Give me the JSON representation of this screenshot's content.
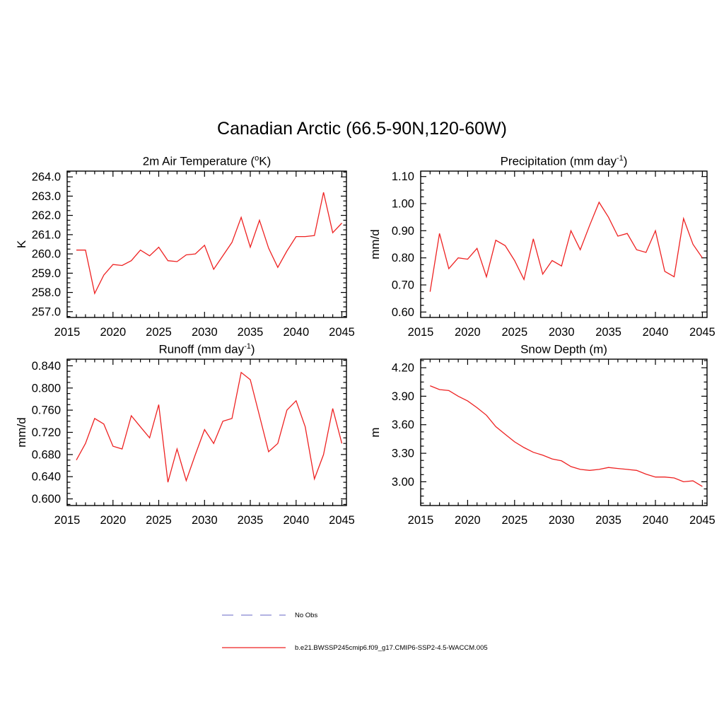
{
  "title": "Canadian Arctic (66.5-90N,120-60W)",
  "legend": {
    "entries": [
      {
        "label": "No Obs",
        "color": "#9a9ad8",
        "style": "dashed"
      },
      {
        "label": "b.e21.BWSSP245cmip6.f09_g17.CMIP6-SSP2-4.5-WACCM.005",
        "color": "#ee2222",
        "style": "solid"
      }
    ]
  },
  "chart_data": [
    {
      "type": "line",
      "title": {
        "pre": "2m Air Temperature (",
        "sup": "o",
        "post": "K)"
      },
      "ylabel": "K",
      "color": "#ee2222",
      "x": [
        2016,
        2017,
        2018,
        2019,
        2020,
        2021,
        2022,
        2023,
        2024,
        2025,
        2026,
        2027,
        2028,
        2029,
        2030,
        2031,
        2032,
        2033,
        2034,
        2035,
        2036,
        2037,
        2038,
        2039,
        2040,
        2041,
        2042,
        2043,
        2044,
        2045
      ],
      "values": [
        260.2,
        260.2,
        257.95,
        258.9,
        259.45,
        259.4,
        259.65,
        260.2,
        259.9,
        260.35,
        259.65,
        259.6,
        259.95,
        260.0,
        260.45,
        259.2,
        259.9,
        260.6,
        261.9,
        260.35,
        261.75,
        260.3,
        259.3,
        260.15,
        260.9,
        260.9,
        260.95,
        263.2,
        261.1,
        261.6
      ],
      "xlim": [
        2015,
        2045.5
      ],
      "ylim": [
        256.7,
        264.3
      ],
      "xticks": [
        2015,
        2020,
        2025,
        2030,
        2035,
        2040,
        2045
      ],
      "xtick_labels": [
        "2015",
        "2020",
        "2025",
        "2030",
        "2035",
        "2040",
        "2045"
      ],
      "yticks": [
        257,
        258,
        259,
        260,
        261,
        262,
        263,
        264
      ],
      "ytick_labels": [
        "257.0",
        "258.0",
        "259.0",
        "260.0",
        "261.0",
        "262.0",
        "263.0",
        "264.0"
      ],
      "x_minor": 1,
      "y_minor": 0.25
    },
    {
      "type": "line",
      "title": {
        "pre": "Precipitation (mm day",
        "sup": "-1",
        "post": ")"
      },
      "ylabel": "mm/d",
      "color": "#ee2222",
      "x": [
        2016,
        2017,
        2018,
        2019,
        2020,
        2021,
        2022,
        2023,
        2024,
        2025,
        2026,
        2027,
        2028,
        2029,
        2030,
        2031,
        2032,
        2033,
        2034,
        2035,
        2036,
        2037,
        2038,
        2039,
        2040,
        2041,
        2042,
        2043,
        2044,
        2045
      ],
      "values": [
        0.675,
        0.89,
        0.76,
        0.8,
        0.795,
        0.835,
        0.73,
        0.865,
        0.845,
        0.79,
        0.72,
        0.87,
        0.74,
        0.79,
        0.77,
        0.9,
        0.83,
        0.92,
        1.005,
        0.95,
        0.88,
        0.89,
        0.83,
        0.82,
        0.9,
        0.75,
        0.73,
        0.945,
        0.85,
        0.8
      ],
      "xlim": [
        2015,
        2045.5
      ],
      "ylim": [
        0.58,
        1.12
      ],
      "xticks": [
        2015,
        2020,
        2025,
        2030,
        2035,
        2040,
        2045
      ],
      "xtick_labels": [
        "2015",
        "2020",
        "2025",
        "2030",
        "2035",
        "2040",
        "2045"
      ],
      "yticks": [
        0.6,
        0.7,
        0.8,
        0.9,
        1.0,
        1.1
      ],
      "ytick_labels": [
        "0.60",
        "0.70",
        "0.80",
        "0.90",
        "1.00",
        "1.10"
      ],
      "x_minor": 1,
      "y_minor": 0.025
    },
    {
      "type": "line",
      "title": {
        "pre": "Runoff (mm day",
        "sup": "-1",
        "post": ")"
      },
      "ylabel": "mm/d",
      "color": "#ee2222",
      "x": [
        2016,
        2017,
        2018,
        2019,
        2020,
        2021,
        2022,
        2023,
        2024,
        2025,
        2026,
        2027,
        2028,
        2029,
        2030,
        2031,
        2032,
        2033,
        2034,
        2035,
        2036,
        2037,
        2038,
        2039,
        2040,
        2041,
        2042,
        2043,
        2044,
        2045
      ],
      "values": [
        0.67,
        0.7,
        0.745,
        0.735,
        0.695,
        0.69,
        0.75,
        0.73,
        0.71,
        0.77,
        0.63,
        0.69,
        0.633,
        0.68,
        0.725,
        0.7,
        0.74,
        0.745,
        0.828,
        0.815,
        0.75,
        0.685,
        0.7,
        0.76,
        0.777,
        0.73,
        0.636,
        0.68,
        0.763,
        0.7
      ],
      "xlim": [
        2015,
        2045.5
      ],
      "ylim": [
        0.588,
        0.852
      ],
      "xticks": [
        2015,
        2020,
        2025,
        2030,
        2035,
        2040,
        2045
      ],
      "xtick_labels": [
        "2015",
        "2020",
        "2025",
        "2030",
        "2035",
        "2040",
        "2045"
      ],
      "yticks": [
        0.6,
        0.64,
        0.68,
        0.72,
        0.76,
        0.8,
        0.84
      ],
      "ytick_labels": [
        "0.600",
        "0.640",
        "0.680",
        "0.720",
        "0.760",
        "0.800",
        "0.840"
      ],
      "x_minor": 1,
      "y_minor": 0.01
    },
    {
      "type": "line",
      "title": {
        "pre": "Snow Depth (m)",
        "sup": "",
        "post": ""
      },
      "ylabel": "m",
      "color": "#ee2222",
      "x": [
        2016,
        2017,
        2018,
        2019,
        2020,
        2021,
        2022,
        2023,
        2024,
        2025,
        2026,
        2027,
        2028,
        2029,
        2030,
        2031,
        2032,
        2033,
        2034,
        2035,
        2036,
        2037,
        2038,
        2039,
        2040,
        2041,
        2042,
        2043,
        2044,
        2045
      ],
      "values": [
        4.01,
        3.97,
        3.96,
        3.9,
        3.85,
        3.78,
        3.7,
        3.58,
        3.5,
        3.42,
        3.36,
        3.31,
        3.28,
        3.24,
        3.22,
        3.16,
        3.13,
        3.12,
        3.13,
        3.15,
        3.14,
        3.13,
        3.12,
        3.08,
        3.05,
        3.05,
        3.04,
        3.0,
        3.01,
        2.95
      ],
      "xlim": [
        2015,
        2045.5
      ],
      "ylim": [
        2.75,
        4.29
      ],
      "xticks": [
        2015,
        2020,
        2025,
        2030,
        2035,
        2040,
        2045
      ],
      "xtick_labels": [
        "2015",
        "2020",
        "2025",
        "2030",
        "2035",
        "2040",
        "2045"
      ],
      "yticks": [
        3.0,
        3.3,
        3.6,
        3.9,
        4.2
      ],
      "ytick_labels": [
        "3.00",
        "3.30",
        "3.60",
        "3.90",
        "4.20"
      ],
      "x_minor": 1,
      "y_minor": 0.075
    }
  ]
}
